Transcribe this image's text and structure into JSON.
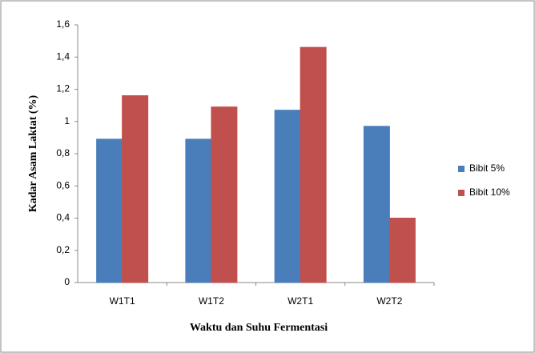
{
  "chart_data": {
    "type": "bar",
    "xlabel": "Waktu dan Suhu Fermentasi",
    "ylabel": "Kadar Asam Laktat (%)",
    "categories": [
      "W1T1",
      "W1T2",
      "W2T1",
      "W2T2"
    ],
    "series": [
      {
        "name": "Bibit 5%",
        "color": "#4a7ebb",
        "values": [
          0.89,
          0.89,
          1.07,
          0.97
        ]
      },
      {
        "name": "Bibit 10%",
        "color": "#c0504d",
        "values": [
          1.16,
          1.09,
          1.46,
          0.4
        ]
      }
    ],
    "ylim": [
      0,
      1.6
    ],
    "yticks": [
      0,
      {
        "value": 0.2,
        "label": "0,2"
      },
      {
        "value": 0.4,
        "label": "0,4"
      },
      {
        "value": 0.6,
        "label": "0,6"
      },
      {
        "value": 0.8,
        "label": "0,8"
      },
      1,
      {
        "value": 1.2,
        "label": "1,2"
      },
      {
        "value": 1.4,
        "label": "1,4"
      },
      {
        "value": 1.6,
        "label": "1,6"
      }
    ],
    "grid": false,
    "legend": "right"
  }
}
